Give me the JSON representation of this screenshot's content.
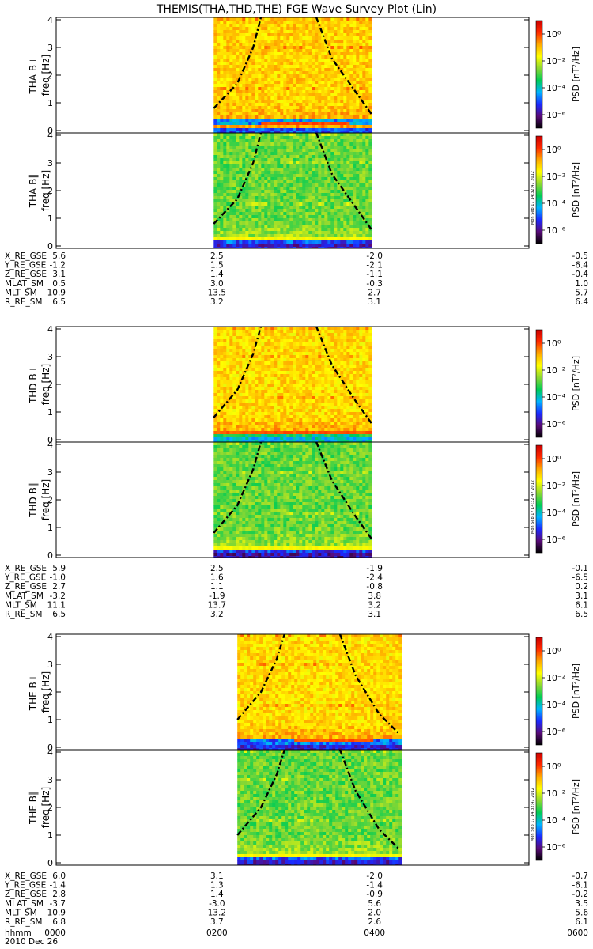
{
  "title": "THEMIS(THA,THD,THE) FGE Wave Survey Plot (Lin)",
  "colorbar": {
    "label": "PSD",
    "unit": "[nT²/Hz]",
    "ticks": [
      "10⁰",
      "10⁻²",
      "10⁻⁴",
      "10⁻⁶"
    ],
    "tick_exponents": [
      0,
      -2,
      -4,
      -6
    ],
    "range_exponent": [
      -7,
      1
    ],
    "colors": [
      "#000000",
      "#5a0a78",
      "#1a2aff",
      "#00b4ff",
      "#00cc55",
      "#8cd832",
      "#ffff00",
      "#ffaa00",
      "#ff2a00",
      "#cc0000"
    ]
  },
  "timestamp": "Mon Sep 17 14:32:47 2012",
  "x_axis": {
    "label": "hhmm",
    "ticks": [
      "0000",
      "0200",
      "0400",
      "0600"
    ],
    "tick_hours": [
      0,
      2,
      4,
      6
    ],
    "date": "2010 Dec 26"
  },
  "groups": [
    {
      "probe": "THA",
      "panels": [
        {
          "label": "THA B⊥",
          "ylabel": "freq [Hz]"
        },
        {
          "label": "THA B∥",
          "ylabel": "freq [Hz]"
        }
      ],
      "ephemeris": [
        {
          "name": "X_RE_GSE",
          "values": [
            "5.6",
            "2.5",
            "-2.0",
            "-0.5"
          ]
        },
        {
          "name": "Y_RE_GSE",
          "values": [
            "-1.2",
            "1.5",
            "-2.1",
            "-6.4"
          ]
        },
        {
          "name": "Z_RE_GSE",
          "values": [
            "3.1",
            "1.4",
            "-1.1",
            "-0.4"
          ]
        },
        {
          "name": "MLAT_SM",
          "values": [
            "0.5",
            "3.0",
            "-0.3",
            "1.0"
          ]
        },
        {
          "name": "MLT_SM",
          "values": [
            "10.9",
            "13.5",
            "2.7",
            "5.7"
          ]
        },
        {
          "name": "R_RE_SM",
          "values": [
            "6.5",
            "3.2",
            "3.1",
            "6.4"
          ]
        }
      ]
    },
    {
      "probe": "THD",
      "panels": [
        {
          "label": "THD B⊥",
          "ylabel": "freq [Hz]"
        },
        {
          "label": "THD B∥",
          "ylabel": "freq [Hz]"
        }
      ],
      "ephemeris": [
        {
          "name": "X_RE_GSE",
          "values": [
            "5.9",
            "2.5",
            "-1.9",
            "-0.1"
          ]
        },
        {
          "name": "Y_RE_GSE",
          "values": [
            "-1.0",
            "1.6",
            "-2.4",
            "-6.5"
          ]
        },
        {
          "name": "Z_RE_GSE",
          "values": [
            "2.7",
            "1.1",
            "-0.8",
            "0.2"
          ]
        },
        {
          "name": "MLAT_SM",
          "values": [
            "-3.2",
            "-1.9",
            "3.8",
            "3.1"
          ]
        },
        {
          "name": "MLT_SM",
          "values": [
            "11.1",
            "13.7",
            "3.2",
            "6.1"
          ]
        },
        {
          "name": "R_RE_SM",
          "values": [
            "6.5",
            "3.2",
            "3.1",
            "6.5"
          ]
        }
      ]
    },
    {
      "probe": "THE",
      "panels": [
        {
          "label": "THE B⊥",
          "ylabel": "freq [Hz]"
        },
        {
          "label": "THE B∥",
          "ylabel": "freq [Hz]"
        }
      ],
      "ephemeris": [
        {
          "name": "X_RE_GSE",
          "values": [
            "6.0",
            "3.1",
            "-2.0",
            "-0.7"
          ]
        },
        {
          "name": "Y_RE_GSE",
          "values": [
            "-1.4",
            "1.3",
            "-1.4",
            "-6.1"
          ]
        },
        {
          "name": "Z_RE_GSE",
          "values": [
            "2.8",
            "1.4",
            "-0.9",
            "-0.2"
          ]
        },
        {
          "name": "MLAT_SM",
          "values": [
            "-3.7",
            "-3.0",
            "5.6",
            "3.5"
          ]
        },
        {
          "name": "MLT_SM",
          "values": [
            "10.9",
            "13.2",
            "2.0",
            "5.6"
          ]
        },
        {
          "name": "R_RE_SM",
          "values": [
            "6.8",
            "3.7",
            "2.6",
            "6.1"
          ]
        }
      ]
    }
  ],
  "chart_data": {
    "type": "heatmap",
    "title": "THEMIS(THA,THD,THE) FGE Wave Survey Plot (Lin)",
    "xlabel": "hhmm",
    "x_range_hours": [
      0,
      6
    ],
    "ylim_hz": [
      0,
      4
    ],
    "y_ticks": [
      0,
      1,
      2,
      3,
      4
    ],
    "colorbar_log_range": [
      -7,
      1
    ],
    "panels": [
      {
        "name": "THA B⊥",
        "data_hours": [
          2.0,
          4.0
        ],
        "bg_log_psd": -1.2,
        "band_hz": [
          0.2,
          0.4
        ],
        "band_log_psd": -4.5,
        "strong_line_hz": 0.28,
        "strong_line_hours": [
          2.6,
          3.7
        ],
        "cyclotron_left_hz": [
          [
            2.0,
            0.8
          ],
          [
            2.3,
            1.7
          ],
          [
            2.5,
            3.0
          ],
          [
            2.6,
            4.1
          ]
        ],
        "cyclotron_right_hz": [
          [
            3.3,
            4.1
          ],
          [
            3.5,
            2.6
          ],
          [
            3.8,
            1.4
          ],
          [
            4.0,
            0.6
          ]
        ]
      },
      {
        "name": "THA B∥",
        "data_hours": [
          2.0,
          4.0
        ],
        "bg_log_psd": -2.8,
        "band_hz": [
          0.0,
          0.2
        ],
        "band_log_psd": -5.0,
        "strong_line_hz": 0.28,
        "strong_line_hours": [
          2.0,
          4.0
        ],
        "cyclotron_left_hz": [
          [
            2.0,
            0.8
          ],
          [
            2.3,
            1.7
          ],
          [
            2.5,
            3.0
          ],
          [
            2.6,
            4.1
          ]
        ],
        "cyclotron_right_hz": [
          [
            3.3,
            4.1
          ],
          [
            3.5,
            2.6
          ],
          [
            3.8,
            1.4
          ],
          [
            4.0,
            0.6
          ]
        ]
      },
      {
        "name": "THD B⊥",
        "data_hours": [
          2.0,
          4.0
        ],
        "bg_log_psd": -1.3,
        "band_hz": [
          0.1,
          0.35
        ],
        "band_log_psd": -3.5,
        "strong_line_hz": 0.22,
        "strong_line_hours": [
          2.0,
          4.0
        ],
        "cyclotron_left_hz": [
          [
            2.0,
            0.8
          ],
          [
            2.3,
            1.8
          ],
          [
            2.5,
            3.1
          ],
          [
            2.6,
            4.1
          ]
        ],
        "cyclotron_right_hz": [
          [
            3.3,
            4.1
          ],
          [
            3.5,
            2.7
          ],
          [
            3.8,
            1.4
          ],
          [
            4.0,
            0.6
          ]
        ]
      },
      {
        "name": "THD B∥",
        "data_hours": [
          2.0,
          4.0
        ],
        "bg_log_psd": -2.8,
        "band_hz": [
          0.0,
          0.2
        ],
        "band_log_psd": -5.2,
        "strong_line_hz": 0.3,
        "strong_line_hours": [
          2.0,
          4.0
        ],
        "cyclotron_left_hz": [
          [
            2.0,
            0.8
          ],
          [
            2.3,
            1.8
          ],
          [
            2.5,
            3.1
          ],
          [
            2.6,
            4.1
          ]
        ],
        "cyclotron_right_hz": [
          [
            3.3,
            4.1
          ],
          [
            3.5,
            2.7
          ],
          [
            3.8,
            1.4
          ],
          [
            4.0,
            0.6
          ]
        ]
      },
      {
        "name": "THE B⊥",
        "data_hours": [
          2.3,
          4.35
        ],
        "bg_log_psd": -1.3,
        "band_hz": [
          0.1,
          0.35
        ],
        "band_log_psd": -4.8,
        "strong_line_hz": 0.28,
        "strong_line_hours": [
          3.0,
          4.0
        ],
        "cyclotron_left_hz": [
          [
            2.3,
            1.0
          ],
          [
            2.6,
            2.0
          ],
          [
            2.8,
            3.2
          ],
          [
            2.9,
            4.1
          ]
        ],
        "cyclotron_right_hz": [
          [
            3.6,
            4.1
          ],
          [
            3.8,
            2.6
          ],
          [
            4.1,
            1.2
          ],
          [
            4.35,
            0.5
          ]
        ]
      },
      {
        "name": "THE B∥",
        "data_hours": [
          2.3,
          4.35
        ],
        "bg_log_psd": -2.8,
        "band_hz": [
          0.0,
          0.2
        ],
        "band_log_psd": -5.0,
        "strong_line_hz": 0.3,
        "strong_line_hours": [
          2.3,
          4.35
        ],
        "cyclotron_left_hz": [
          [
            2.3,
            1.0
          ],
          [
            2.6,
            2.0
          ],
          [
            2.8,
            3.2
          ],
          [
            2.9,
            4.1
          ]
        ],
        "cyclotron_right_hz": [
          [
            3.6,
            4.1
          ],
          [
            3.8,
            2.6
          ],
          [
            4.1,
            1.2
          ],
          [
            4.35,
            0.5
          ]
        ]
      }
    ]
  }
}
